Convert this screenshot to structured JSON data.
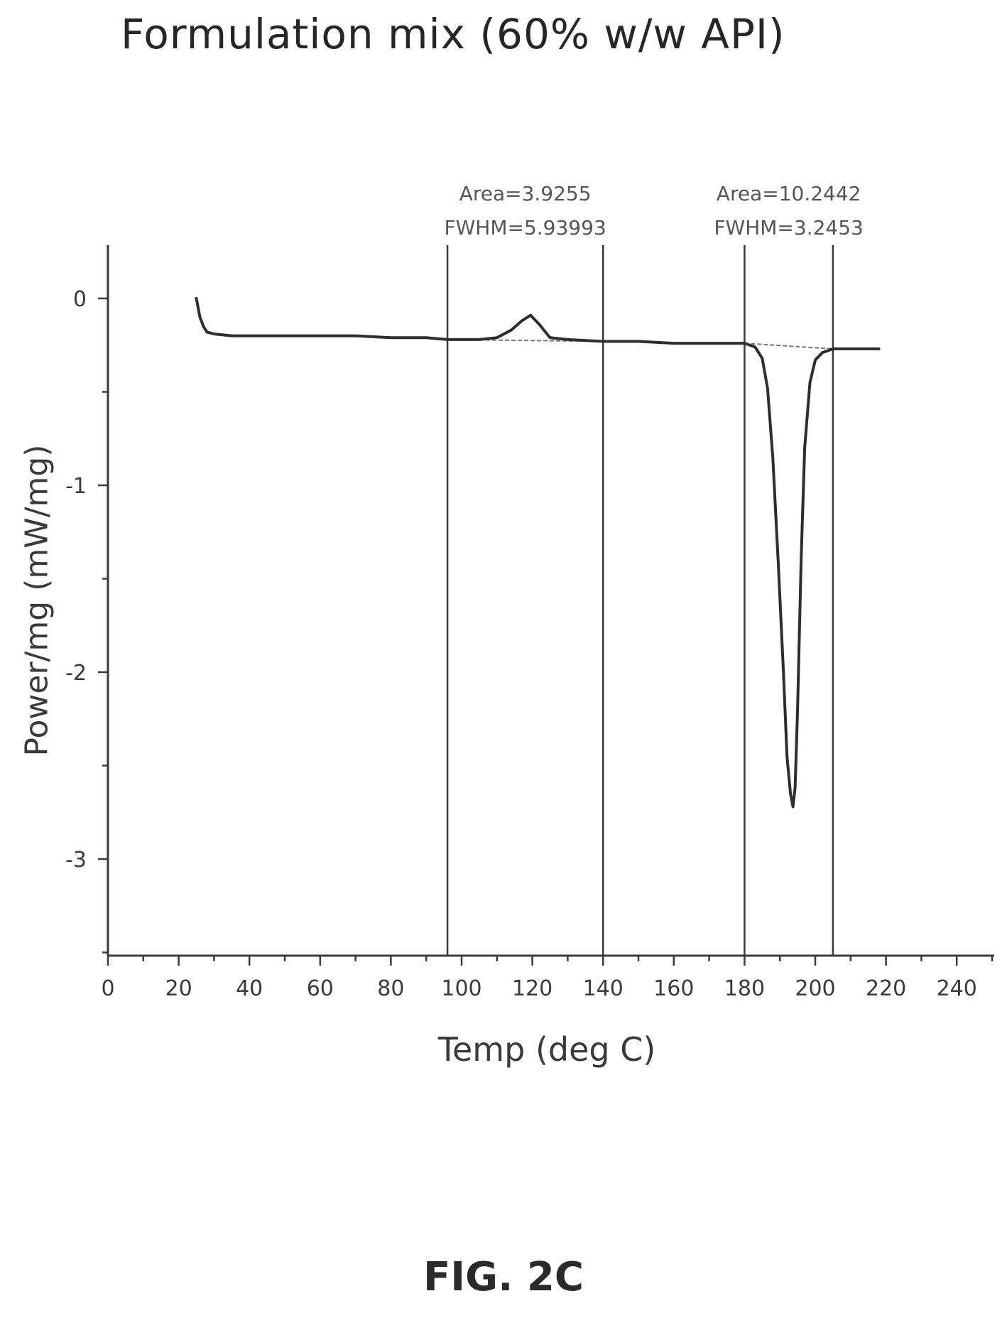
{
  "chart_data": {
    "type": "line",
    "title": "Formulation mix (60% w/w API)",
    "xlabel": "Temp (deg C)",
    "ylabel": "Power/mg (mW/mg)",
    "xlim": [
      0,
      250
    ],
    "ylim": [
      -3.5,
      0.3
    ],
    "x_ticks": [
      0,
      20,
      40,
      60,
      80,
      100,
      120,
      140,
      160,
      180,
      200,
      220,
      240
    ],
    "y_ticks": [
      0,
      -1,
      -2,
      -3
    ],
    "grid": false,
    "series": [
      {
        "x": [
          25,
          25.3,
          26,
          27,
          28,
          30,
          35,
          40,
          50,
          60,
          70,
          80,
          90,
          96,
          100,
          105,
          110,
          114,
          117,
          119.5,
          122,
          125,
          130,
          140,
          150,
          160,
          170,
          180,
          183,
          185,
          186.5,
          188,
          189.5,
          191,
          192,
          193,
          193.7,
          194.3,
          195,
          196,
          197,
          198.5,
          200,
          202,
          205,
          210,
          218
        ],
        "y": [
          0.0,
          -0.03,
          -0.1,
          -0.15,
          -0.18,
          -0.19,
          -0.2,
          -0.2,
          -0.2,
          -0.2,
          -0.2,
          -0.21,
          -0.21,
          -0.22,
          -0.22,
          -0.22,
          -0.21,
          -0.17,
          -0.12,
          -0.09,
          -0.14,
          -0.21,
          -0.22,
          -0.23,
          -0.23,
          -0.24,
          -0.24,
          -0.24,
          -0.26,
          -0.32,
          -0.48,
          -0.85,
          -1.4,
          -2.0,
          -2.45,
          -2.65,
          -2.72,
          -2.62,
          -2.2,
          -1.4,
          -0.8,
          -0.45,
          -0.33,
          -0.29,
          -0.27,
          -0.27,
          -0.27
        ]
      }
    ],
    "baselines": [
      {
        "x": [
          96,
          140
        ],
        "y": [
          -0.22,
          -0.23
        ]
      },
      {
        "x": [
          180,
          205
        ],
        "y": [
          -0.24,
          -0.27
        ]
      }
    ],
    "vertical_lines": [
      96,
      140,
      180,
      205
    ],
    "annotations": [
      {
        "area": "Area=3.9255",
        "fwhm": "FWHM=5.93993"
      },
      {
        "area": "Area=10.2442",
        "fwhm": "FWHM=3.2453"
      }
    ]
  },
  "figure_label": "FIG. 2C"
}
